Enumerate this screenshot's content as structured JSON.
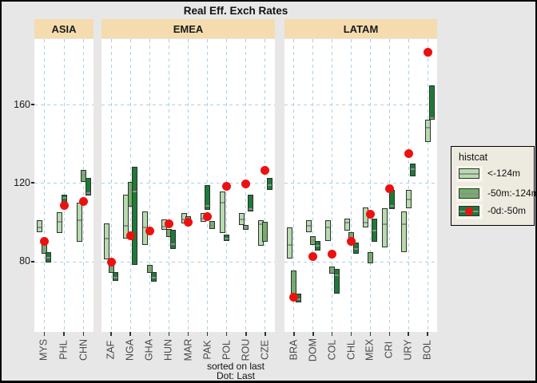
{
  "title": "Real Eff. Exch Rates",
  "caption": {
    "line1": "sorted on last",
    "line2": "Dot: Last"
  },
  "legend": {
    "title": "histcat",
    "items": [
      {
        "key": "light",
        "label": "<-124m"
      },
      {
        "key": "mid",
        "label": "-50m:-124m"
      },
      {
        "key": "dark_dot",
        "label": "-0d:-50m"
      }
    ]
  },
  "colors": {
    "page": "#e7e7e7",
    "panel": "#ffffff",
    "strip": "#f4dcae",
    "grid": "#a9d2e4",
    "light": "#b6dbad",
    "mid": "#72af6a",
    "dark": "#1d7a37",
    "red": "#ec1111",
    "median": "#8f8f8f",
    "bar_border": "#2e2e2e"
  },
  "chart_data": {
    "type": "bar",
    "subtype": "dodged high-low range bars with last-value dot, faceted",
    "title": "Real Eff. Exch Rates",
    "y_ticks": [
      80,
      120,
      160
    ],
    "y_domain": [
      44,
      193.5
    ],
    "grid": "dashed light-blue, both axes",
    "legend_position": "right",
    "seg_format": [
      "category",
      "low",
      "high",
      "median",
      "dodge_position"
    ],
    "facets": [
      {
        "name": "ASIA",
        "countries": [
          {
            "code": "MYS",
            "dot": 90,
            "segs": [
              [
                "light",
                95,
                101,
                97.5,
                -1
              ],
              [
                "mid",
                84,
                89,
                86.5,
                0
              ],
              [
                "dark",
                79.5,
                84.5,
                82,
                1
              ]
            ]
          },
          {
            "code": "PHL",
            "dot": 108.5,
            "segs": [
              [
                "light",
                94.5,
                105,
                100.5,
                -1
              ],
              [
                "dark",
                109,
                114,
                112.5,
                0
              ]
            ]
          },
          {
            "code": "CHN",
            "dot": 110.5,
            "segs": [
              [
                "light",
                90,
                110,
                101,
                -1
              ],
              [
                "mid",
                120.5,
                126.5,
                124.5,
                0
              ],
              [
                "dark",
                113.5,
                122.5,
                115,
                1
              ]
            ]
          }
        ]
      },
      {
        "name": "EMEA",
        "countries": [
          {
            "code": "ZAF",
            "dot": 79.5,
            "segs": [
              [
                "light",
                81,
                99.5,
                92,
                -1
              ],
              [
                "mid",
                74,
                80,
                77,
                0
              ],
              [
                "dark",
                70,
                74.5,
                72,
                1
              ]
            ]
          },
          {
            "code": "NGA",
            "dot": 93,
            "segs": [
              [
                "light",
                91.5,
                114,
                98.5,
                -1
              ],
              [
                "mid",
                108,
                120.5,
                116.5,
                0
              ],
              [
                "dark",
                78,
                128.5,
                116,
                1
              ]
            ]
          },
          {
            "code": "GHA",
            "dot": 95.5,
            "segs": [
              [
                "light",
                88.5,
                105.5,
                97.5,
                -1
              ],
              [
                "mid",
                74,
                78,
                76,
                0
              ],
              [
                "dark",
                69.5,
                74.5,
                72,
                1
              ]
            ]
          },
          {
            "code": "HUN",
            "dot": 99,
            "segs": [
              [
                "light",
                96,
                101.5,
                98,
                -1
              ],
              [
                "mid",
                92.5,
                96.5,
                94.5,
                0
              ],
              [
                "dark",
                86.5,
                96,
                89,
                1
              ]
            ]
          },
          {
            "code": "MAR",
            "dot": 100,
            "segs": [
              [
                "light",
                99.5,
                104.5,
                101.5,
                -1
              ],
              [
                "mid",
                100,
                103,
                101.5,
                0
              ]
            ]
          },
          {
            "code": "PAK",
            "dot": 103,
            "segs": [
              [
                "light",
                100,
                104.5,
                102,
                -1
              ],
              [
                "dark",
                106.5,
                119,
                108.5,
                0
              ],
              [
                "mid",
                96.5,
                100.5,
                98.5,
                1
              ]
            ]
          },
          {
            "code": "POL",
            "dot": 118.5,
            "segs": [
              [
                "light",
                94.5,
                115.5,
                110,
                -1
              ],
              [
                "dark",
                90.5,
                93.5,
                92,
                0
              ]
            ]
          },
          {
            "code": "ROU",
            "dot": 119.5,
            "segs": [
              [
                "light",
                98.5,
                104.5,
                101.5,
                -1
              ],
              [
                "mid",
                96,
                98.5,
                97,
                0
              ],
              [
                "dark",
                105.5,
                114,
                107,
                1
              ]
            ]
          },
          {
            "code": "CZE",
            "dot": 126.5,
            "segs": [
              [
                "light",
                88,
                101,
                99,
                -1
              ],
              [
                "mid",
                90,
                100,
                93,
                0
              ],
              [
                "dark",
                116.5,
                122.5,
                119,
                1
              ]
            ]
          }
        ]
      },
      {
        "name": "LATAM",
        "countries": [
          {
            "code": "BRA",
            "dot": 61.5,
            "segs": [
              [
                "light",
                81.5,
                97.5,
                88.5,
                -1
              ],
              [
                "mid",
                60.5,
                75.5,
                70,
                0
              ],
              [
                "dark",
                59,
                63.5,
                61,
                1
              ]
            ]
          },
          {
            "code": "DOM",
            "dot": 82.5,
            "segs": [
              [
                "light",
                95,
                101,
                98.5,
                -1
              ],
              [
                "mid",
                88.5,
                93,
                91,
                0
              ],
              [
                "dark",
                85.5,
                90.5,
                88,
                1
              ]
            ]
          },
          {
            "code": "COL",
            "dot": 83.5,
            "segs": [
              [
                "light",
                90.5,
                101,
                97.5,
                -1
              ],
              [
                "mid",
                73.5,
                77.5,
                75.5,
                0
              ],
              [
                "dark",
                63.5,
                76,
                73,
                1
              ]
            ]
          },
          {
            "code": "CHL",
            "dot": 90,
            "segs": [
              [
                "light",
                95.5,
                102,
                100,
                -1
              ],
              [
                "mid",
                88.5,
                95,
                93,
                0
              ],
              [
                "dark",
                84,
                89.5,
                86.5,
                1
              ]
            ]
          },
          {
            "code": "MEX",
            "dot": 104,
            "segs": [
              [
                "light",
                97.5,
                107.5,
                100,
                -1
              ],
              [
                "mid",
                79,
                84.5,
                82,
                0
              ],
              [
                "dark",
                90,
                102,
                96,
                1
              ]
            ]
          },
          {
            "code": "CRI",
            "dot": 117,
            "segs": [
              [
                "light",
                87,
                107,
                99,
                -1
              ],
              [
                "dark",
                106.5,
                116.5,
                108.5,
                0.5
              ]
            ]
          },
          {
            "code": "URY",
            "dot": 135,
            "segs": [
              [
                "light",
                84.5,
                105.5,
                99,
                -1
              ],
              [
                "light",
                107,
                116.5,
                112,
                0
              ],
              [
                "dark",
                123.5,
                130,
                127.5,
                1
              ]
            ]
          },
          {
            "code": "BOL",
            "dot": 187,
            "segs": [
              [
                "light",
                141,
                152.5,
                148.5,
                0
              ],
              [
                "dark",
                152.5,
                170,
                153.5,
                1
              ]
            ]
          }
        ]
      }
    ]
  }
}
